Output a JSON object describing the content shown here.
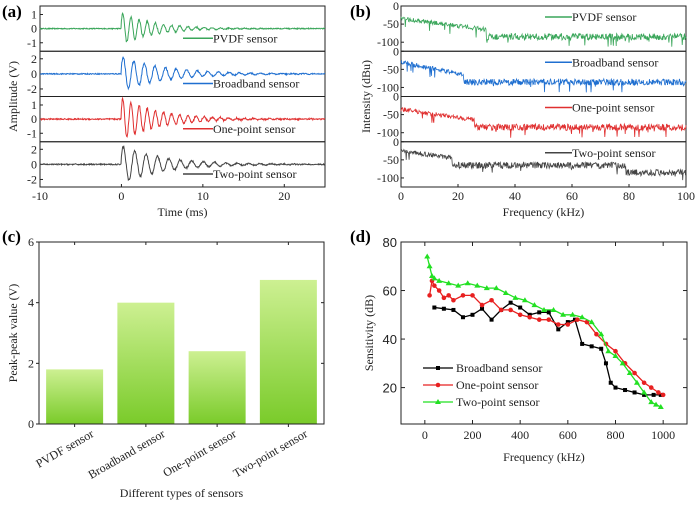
{
  "chart_data": [
    {
      "panel": "(a)",
      "type": "line",
      "xlabel": "Time (ms)",
      "ylabel": "Amplitude (V)",
      "xlim": [
        -10,
        25
      ],
      "xticks": [
        -10,
        0,
        10,
        20
      ],
      "series": [
        {
          "name": "PVDF sensor",
          "color": "#3aa65a",
          "ylim": [
            -1.6,
            1.6
          ],
          "yticks": [
            1,
            0,
            -1
          ],
          "peak": 1.1,
          "decay": 0.25,
          "period": 1.0
        },
        {
          "name": "Broadband sensor",
          "color": "#1f6fd0",
          "ylim": [
            -3,
            3
          ],
          "yticks": [
            2,
            0,
            -2
          ],
          "peak": 2.2,
          "decay": 0.18,
          "period": 1.3
        },
        {
          "name": "One-point sensor",
          "color": "#e03030",
          "ylim": [
            -1.6,
            1.6
          ],
          "yticks": [
            1,
            0,
            -1
          ],
          "peak": 1.5,
          "decay": 0.22,
          "period": 1.0
        },
        {
          "name": "Two-point sensor",
          "color": "#444444",
          "ylim": [
            -3,
            3
          ],
          "yticks": [
            2,
            0,
            -2
          ],
          "peak": 2.5,
          "decay": 0.2,
          "period": 1.4
        }
      ]
    },
    {
      "panel": "(b)",
      "type": "line",
      "xlabel": "Frequency (kHz)",
      "ylabel": "Intensity (dBu)",
      "xlim": [
        0,
        100
      ],
      "xticks": [
        0,
        20,
        40,
        60,
        80,
        100
      ],
      "series": [
        {
          "name": "PVDF sensor",
          "color": "#3aa65a",
          "ylim": [
            -125,
            0
          ],
          "yticks": [
            0,
            -50,
            -100
          ],
          "start": -35,
          "floor": -85,
          "knee": 30
        },
        {
          "name": "Broadband sensor",
          "color": "#1f6fd0",
          "ylim": [
            -125,
            0
          ],
          "yticks": [
            0,
            -50,
            -100
          ],
          "start": -30,
          "floor": -85,
          "knee": 22
        },
        {
          "name": "One-point sensor",
          "color": "#e03030",
          "ylim": [
            -125,
            0
          ],
          "yticks": [
            0,
            -50,
            -100
          ],
          "start": -35,
          "floor": -85,
          "knee": 26
        },
        {
          "name": "Two-point sensor",
          "color": "#444444",
          "ylim": [
            -125,
            0
          ],
          "yticks": [
            0,
            -50,
            -100
          ],
          "start": -25,
          "floor": -65,
          "knee": 18,
          "floor2": -85,
          "knee2": 79
        }
      ]
    },
    {
      "panel": "(c)",
      "type": "bar",
      "title": "",
      "xlabel": "Different types of sensors",
      "ylabel": "Peak-peak value (V)",
      "categories": [
        "PVDF sensor",
        "Broadband sensor",
        "One-point sensor",
        "Two-point sensor"
      ],
      "values": [
        1.8,
        4.0,
        2.4,
        4.75
      ],
      "ylim": [
        0,
        6
      ],
      "yticks": [
        0,
        2,
        4,
        6
      ],
      "bar_color_top": "#cdf092",
      "bar_color_bottom": "#7acb2a"
    },
    {
      "panel": "(d)",
      "type": "line",
      "xlabel": "Frequency (kHz)",
      "ylabel": "Sensitivity (dB)",
      "xlim": [
        -100,
        1100
      ],
      "ylim": [
        5,
        80
      ],
      "xticks": [
        0,
        200,
        400,
        600,
        800,
        1000
      ],
      "yticks": [
        20,
        40,
        60,
        80
      ],
      "legend": "bottom-left",
      "series": [
        {
          "name": "Broadband sensor",
          "color": "#000000",
          "marker": "square",
          "x": [
            40,
            80,
            120,
            160,
            200,
            240,
            280,
            320,
            360,
            400,
            440,
            480,
            520,
            560,
            600,
            630,
            660,
            700,
            740,
            760,
            780,
            800,
            840,
            880,
            920,
            960,
            990
          ],
          "y": [
            53,
            52.5,
            52,
            49,
            50,
            52.5,
            48,
            52,
            55,
            53,
            50,
            51,
            51,
            44,
            47,
            48,
            38,
            37,
            36,
            30,
            22,
            20,
            19,
            18,
            17,
            17,
            17
          ]
        },
        {
          "name": "One-point sensor",
          "color": "#e82020",
          "marker": "circle",
          "x": [
            20,
            30,
            40,
            60,
            80,
            100,
            120,
            160,
            200,
            240,
            280,
            320,
            360,
            400,
            440,
            480,
            520,
            560,
            600,
            640,
            680,
            720,
            760,
            800,
            840,
            880,
            920,
            950,
            980,
            1000
          ],
          "y": [
            58,
            64,
            62,
            60,
            57,
            58,
            56,
            58,
            58,
            54,
            56,
            52,
            52,
            50,
            49,
            48,
            48,
            46,
            46,
            48,
            47,
            42,
            38,
            35,
            30,
            26,
            22,
            20,
            18,
            17
          ]
        },
        {
          "name": "Two-point sensor",
          "color": "#22e022",
          "marker": "triangle",
          "x": [
            10,
            20,
            30,
            40,
            60,
            100,
            140,
            180,
            220,
            260,
            300,
            340,
            380,
            420,
            460,
            500,
            540,
            580,
            620,
            660,
            700,
            740,
            770,
            800,
            830,
            860,
            890,
            920,
            950,
            970,
            990
          ],
          "y": [
            74,
            70,
            66,
            65,
            64,
            63,
            62,
            63,
            62,
            61,
            61,
            59,
            57,
            56,
            54,
            52,
            52,
            50,
            50,
            49,
            47,
            42,
            35,
            33,
            30,
            26,
            22,
            18,
            14,
            13,
            12
          ]
        }
      ]
    }
  ],
  "labels": {
    "a": "(a)",
    "b": "(b)",
    "c": "(c)",
    "d": "(d)"
  }
}
